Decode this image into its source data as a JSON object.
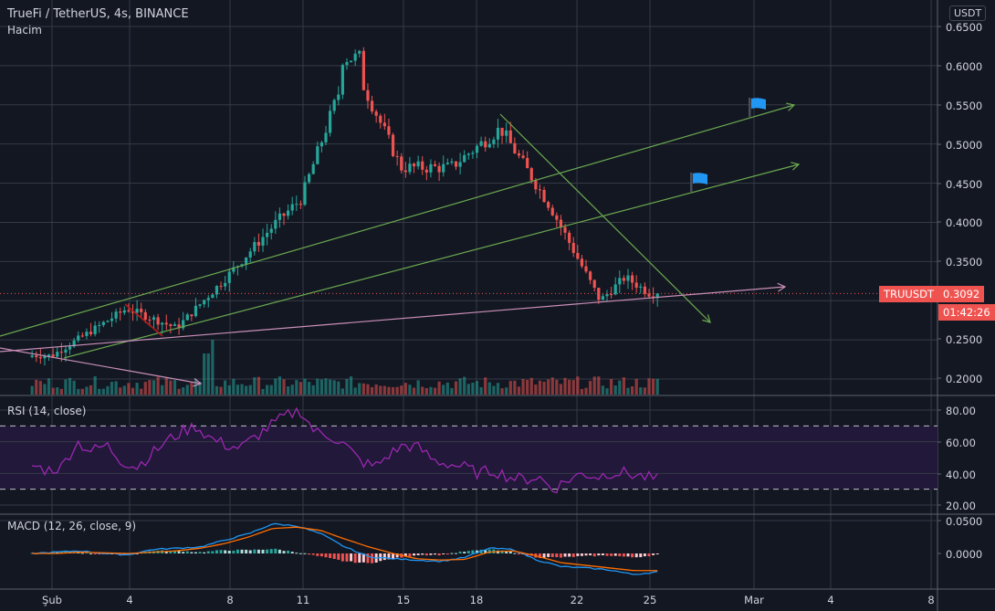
{
  "header": {
    "title": "TrueFi / TetherUS, 4s, BINANCE",
    "volume_label": "Hacim"
  },
  "indicators": {
    "rsi_label": "RSI (14, close)",
    "macd_label": "MACD (12, 26, close, 9)"
  },
  "price_axis": {
    "unit": "USDT",
    "ticks": [
      "0.6500",
      "0.6000",
      "0.5500",
      "0.5000",
      "0.4500",
      "0.4000",
      "0.3500",
      "0.2500",
      "0.2000"
    ]
  },
  "rsi_axis": {
    "ticks": [
      "80.00",
      "60.00",
      "40.00",
      "20.00"
    ]
  },
  "macd_axis": {
    "ticks": [
      "0.0500",
      "0.0000"
    ]
  },
  "time_axis": {
    "ticks": [
      "Şub",
      "4",
      "8",
      "11",
      "15",
      "18",
      "22",
      "25",
      "Mar",
      "4",
      "8"
    ]
  },
  "last_price": {
    "symbol": "TRUUSDT",
    "value": "0.3092",
    "countdown": "01:42:26"
  },
  "colors": {
    "background": "#131722",
    "grid": "#363a45",
    "up": "#26a69a",
    "down": "#ef5350",
    "channel": "#6aa84f",
    "pink_line": "#c98fb8",
    "rsi_line": "#9c27b0",
    "rsi_band": "#21183a",
    "macd_line": "#2196f3",
    "signal_line": "#ff6d00",
    "flag": "#2196f3"
  },
  "chart_data": {
    "type": "candlestick",
    "title": "TrueFi / TetherUS, 4s, BINANCE",
    "xlabel": "",
    "ylabel": "USDT",
    "ylim": [
      0.18,
      0.66
    ],
    "x_ticks": [
      "Şub",
      "4",
      "8",
      "11",
      "15",
      "18",
      "22",
      "25",
      "Mar",
      "4",
      "8"
    ],
    "last_price": 0.3092,
    "approx_daily_path": [
      {
        "date": "Feb 1",
        "close": 0.23
      },
      {
        "date": "Feb 4",
        "close": 0.29
      },
      {
        "date": "Feb 6",
        "close": 0.265
      },
      {
        "date": "Feb 8",
        "close": 0.33
      },
      {
        "date": "Feb 10",
        "close": 0.4
      },
      {
        "date": "Feb 11",
        "close": 0.43
      },
      {
        "date": "Feb 13",
        "close": 0.61
      },
      {
        "date": "Feb 15",
        "close": 0.47
      },
      {
        "date": "Feb 17",
        "close": 0.47
      },
      {
        "date": "Feb 19",
        "close": 0.52
      },
      {
        "date": "Feb 21",
        "close": 0.42
      },
      {
        "date": "Feb 23",
        "close": 0.3
      },
      {
        "date": "Feb 24",
        "close": 0.33
      },
      {
        "date": "Feb 25",
        "close": 0.3092
      }
    ],
    "price_high": 0.63,
    "price_low_recent": 0.295,
    "drawings": [
      {
        "type": "trend_channel_upper",
        "color": "#6aa84f",
        "from": [
          "Jan 31",
          0.25
        ],
        "to": [
          "Mar 2",
          0.55
        ],
        "arrow": true
      },
      {
        "type": "trend_channel_lower",
        "color": "#6aa84f",
        "from": [
          "Feb 2",
          0.225
        ],
        "to": [
          "Mar 2",
          0.475
        ],
        "arrow": true
      },
      {
        "type": "downtrend_line",
        "color": "#6aa84f",
        "from": [
          "Feb 19",
          0.54
        ],
        "to": [
          "Feb 26",
          0.28
        ],
        "arrow": true
      },
      {
        "type": "support_line",
        "color": "#c98fb8",
        "from": [
          "Jan 31",
          0.225
        ],
        "to": [
          "Feb 28",
          0.32
        ],
        "arrow": true
      },
      {
        "type": "falling_line",
        "color": "#c98fb8",
        "from": [
          "Jan 31",
          0.24
        ],
        "to": [
          "Feb 7",
          0.195
        ],
        "arrow": true
      },
      {
        "type": "flag",
        "color": "#2196f3",
        "at": [
          "Feb 28",
          0.55
        ]
      },
      {
        "type": "flag",
        "color": "#2196f3",
        "at": [
          "Feb 26",
          0.455
        ]
      }
    ],
    "rsi": {
      "period": 14,
      "ylim": [
        20,
        85
      ],
      "bands": [
        30,
        70
      ],
      "approx_values": [
        45,
        42,
        44,
        60,
        54,
        58,
        48,
        44,
        52,
        60,
        66,
        70,
        62,
        58,
        56,
        63,
        70,
        76,
        80,
        66,
        64,
        58,
        48,
        44,
        52,
        58,
        56,
        48,
        46,
        44,
        40,
        42,
        38,
        36,
        38,
        30,
        36,
        40,
        38,
        41,
        40,
        38,
        36
      ]
    },
    "macd": {
      "params": [
        12,
        26,
        "close",
        9
      ],
      "ylim": [
        -0.03,
        0.06
      ],
      "approx_macd": [
        0.0,
        0.002,
        0.004,
        0.0,
        -0.002,
        0.006,
        0.008,
        0.01,
        0.02,
        0.03,
        0.045,
        0.042,
        0.03,
        0.01,
        -0.005,
        -0.008,
        -0.01,
        -0.012,
        -0.006,
        0.008,
        0.006,
        -0.01,
        -0.02,
        -0.022,
        -0.025,
        -0.032,
        -0.028
      ],
      "approx_signal": [
        0.0,
        0.0,
        0.002,
        0.001,
        0.0,
        0.002,
        0.004,
        0.008,
        0.015,
        0.025,
        0.038,
        0.04,
        0.035,
        0.022,
        0.01,
        0.0,
        -0.008,
        -0.01,
        -0.009,
        0.002,
        0.004,
        -0.004,
        -0.014,
        -0.018,
        -0.022,
        -0.026,
        -0.026
      ]
    }
  }
}
